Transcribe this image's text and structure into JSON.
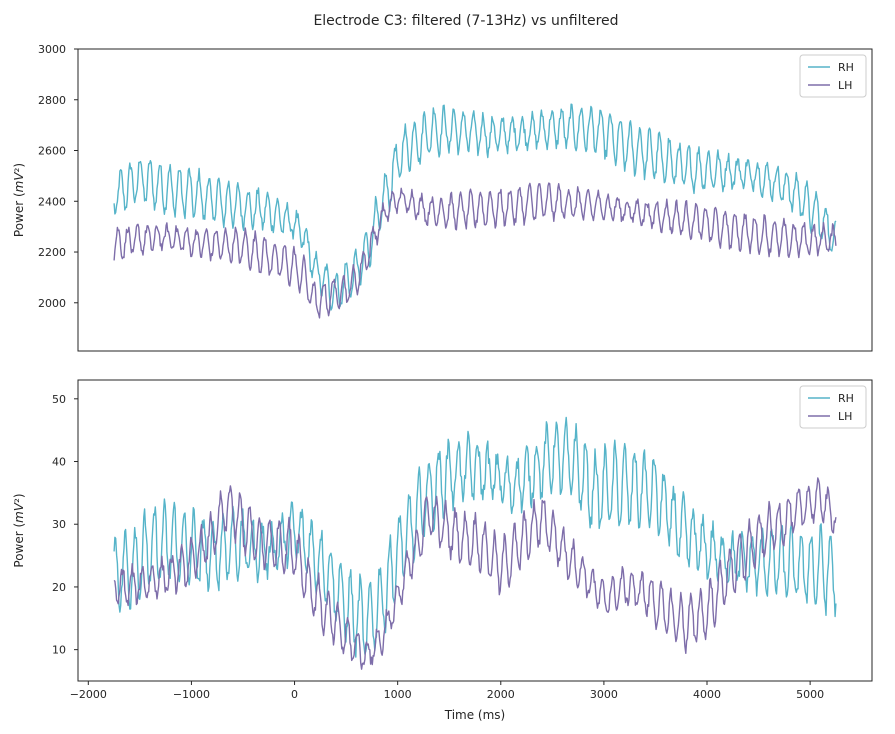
{
  "chart_data": {
    "type": "line",
    "title": "Electrode C3: filtered (7-13Hz) vs unfiltered",
    "xlabel": "Time (ms)",
    "xlim": [
      -2100,
      5600
    ],
    "xticks": [
      -2000,
      -1000,
      0,
      1000,
      2000,
      3000,
      4000,
      5000
    ],
    "xtick_labels": [
      "−2000",
      "−1000",
      "0",
      "1000",
      "2000",
      "3000",
      "4000",
      "5000"
    ],
    "colors": {
      "RH": "#56b4c9",
      "LH": "#7e6eaa"
    },
    "panels": [
      {
        "name": "unfiltered",
        "ylabel": "Power (mV²)",
        "ylim": [
          1810,
          3000
        ],
        "yticks": [
          2000,
          2200,
          2400,
          2600,
          2800,
          3000
        ],
        "ytick_labels": [
          "2000",
          "2200",
          "2400",
          "2600",
          "2800",
          "3000"
        ],
        "legend_position": "upper right",
        "series": [
          {
            "name": "RH",
            "anchors": [
              [
                -1750,
                2420
              ],
              [
                -1500,
                2490
              ],
              [
                -1250,
                2450
              ],
              [
                -1000,
                2430
              ],
              [
                -750,
                2400
              ],
              [
                -500,
                2380
              ],
              [
                -250,
                2360
              ],
              [
                0,
                2310
              ],
              [
                100,
                2250
              ],
              [
                200,
                2130
              ],
              [
                300,
                2080
              ],
              [
                400,
                2040
              ],
              [
                500,
                2080
              ],
              [
                600,
                2120
              ],
              [
                700,
                2200
              ],
              [
                800,
                2330
              ],
              [
                900,
                2440
              ],
              [
                1000,
                2560
              ],
              [
                1100,
                2620
              ],
              [
                1200,
                2640
              ],
              [
                1350,
                2680
              ],
              [
                1600,
                2680
              ],
              [
                1900,
                2660
              ],
              [
                2200,
                2670
              ],
              [
                2500,
                2690
              ],
              [
                2800,
                2690
              ],
              [
                3000,
                2670
              ],
              [
                3200,
                2620
              ],
              [
                3500,
                2580
              ],
              [
                3800,
                2530
              ],
              [
                4100,
                2520
              ],
              [
                4400,
                2510
              ],
              [
                4700,
                2470
              ],
              [
                4900,
                2420
              ],
              [
                5100,
                2330
              ],
              [
                5250,
                2250
              ]
            ],
            "amplitude": 90,
            "cycle_ms": 95
          },
          {
            "name": "LH",
            "anchors": [
              [
                -1750,
                2230
              ],
              [
                -1500,
                2250
              ],
              [
                -1250,
                2260
              ],
              [
                -1000,
                2240
              ],
              [
                -750,
                2230
              ],
              [
                -500,
                2220
              ],
              [
                -250,
                2180
              ],
              [
                0,
                2140
              ],
              [
                100,
                2100
              ],
              [
                200,
                2000
              ],
              [
                300,
                2020
              ],
              [
                400,
                2040
              ],
              [
                500,
                2050
              ],
              [
                600,
                2090
              ],
              [
                700,
                2180
              ],
              [
                800,
                2290
              ],
              [
                900,
                2370
              ],
              [
                1000,
                2410
              ],
              [
                1100,
                2400
              ],
              [
                1300,
                2360
              ],
              [
                1500,
                2360
              ],
              [
                1800,
                2370
              ],
              [
                2100,
                2380
              ],
              [
                2400,
                2400
              ],
              [
                2700,
                2390
              ],
              [
                3000,
                2380
              ],
              [
                3300,
                2360
              ],
              [
                3600,
                2340
              ],
              [
                3900,
                2320
              ],
              [
                4200,
                2290
              ],
              [
                4500,
                2270
              ],
              [
                4800,
                2250
              ],
              [
                5000,
                2250
              ],
              [
                5250,
                2250
              ]
            ],
            "amplitude": 70,
            "cycle_ms": 95
          }
        ]
      },
      {
        "name": "filtered",
        "ylabel": "Power (mV²)",
        "ylim": [
          5,
          53
        ],
        "yticks": [
          10,
          20,
          30,
          40,
          50
        ],
        "ytick_labels": [
          "10",
          "20",
          "30",
          "40",
          "50"
        ],
        "legend_position": "upper right",
        "series": [
          {
            "name": "RH",
            "anchors": [
              [
                -1750,
                22
              ],
              [
                -1600,
                23
              ],
              [
                -1400,
                26
              ],
              [
                -1200,
                27
              ],
              [
                -1000,
                26
              ],
              [
                -800,
                25
              ],
              [
                -600,
                27
              ],
              [
                -400,
                26
              ],
              [
                -200,
                26
              ],
              [
                0,
                29
              ],
              [
                150,
                26
              ],
              [
                300,
                23
              ],
              [
                500,
                17
              ],
              [
                700,
                14
              ],
              [
                850,
                18
              ],
              [
                1000,
                25
              ],
              [
                1150,
                30
              ],
              [
                1300,
                35
              ],
              [
                1500,
                38
              ],
              [
                1700,
                39
              ],
              [
                1900,
                38
              ],
              [
                2100,
                36
              ],
              [
                2300,
                38
              ],
              [
                2500,
                41
              ],
              [
                2700,
                40
              ],
              [
                2900,
                35
              ],
              [
                3100,
                36
              ],
              [
                3300,
                36
              ],
              [
                3500,
                35
              ],
              [
                3700,
                30
              ],
              [
                3900,
                27
              ],
              [
                4100,
                25
              ],
              [
                4300,
                24
              ],
              [
                4500,
                24
              ],
              [
                4700,
                24
              ],
              [
                4900,
                23
              ],
              [
                5100,
                23
              ],
              [
                5250,
                22
              ]
            ],
            "amplitude": 6,
            "cycle_ms": 95
          },
          {
            "name": "LH",
            "anchors": [
              [
                -1750,
                20
              ],
              [
                -1600,
                20
              ],
              [
                -1400,
                21
              ],
              [
                -1200,
                22
              ],
              [
                -1000,
                24
              ],
              [
                -800,
                28
              ],
              [
                -650,
                33
              ],
              [
                -500,
                30
              ],
              [
                -350,
                27
              ],
              [
                -200,
                27
              ],
              [
                0,
                26
              ],
              [
                150,
                20
              ],
              [
                300,
                16
              ],
              [
                500,
                12
              ],
              [
                700,
                9
              ],
              [
                850,
                12
              ],
              [
                1000,
                18
              ],
              [
                1100,
                23
              ],
              [
                1200,
                27
              ],
              [
                1300,
                32
              ],
              [
                1400,
                30
              ],
              [
                1600,
                28
              ],
              [
                1800,
                27
              ],
              [
                2000,
                23
              ],
              [
                2200,
                27
              ],
              [
                2400,
                31
              ],
              [
                2600,
                26
              ],
              [
                2800,
                22
              ],
              [
                3000,
                18
              ],
              [
                3200,
                20
              ],
              [
                3400,
                19
              ],
              [
                3600,
                16
              ],
              [
                3800,
                14
              ],
              [
                4000,
                16
              ],
              [
                4200,
                22
              ],
              [
                4400,
                26
              ],
              [
                4600,
                29
              ],
              [
                4800,
                31
              ],
              [
                4950,
                33
              ],
              [
                5100,
                34
              ],
              [
                5250,
                31
              ]
            ],
            "amplitude": 4,
            "cycle_ms": 95
          }
        ]
      }
    ]
  }
}
